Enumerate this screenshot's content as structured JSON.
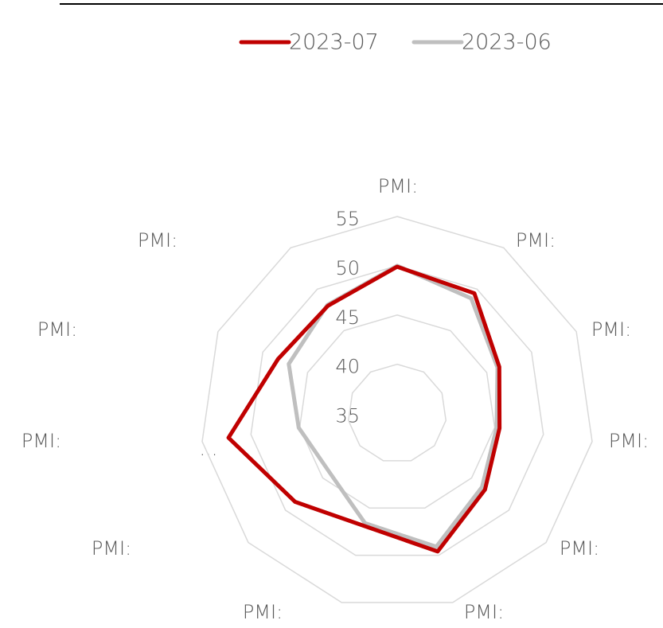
{
  "chart_data": {
    "type": "radar",
    "categories": [
      "PMI:",
      "PMI:",
      "PMI:",
      "PMI:",
      "PMI:",
      "PMI:",
      "PMI:",
      "PMI:",
      "PMI:",
      "PMI:",
      "PMI:"
    ],
    "series": [
      {
        "name": "2023-07",
        "color": "#c00000",
        "values": [
          49.9,
          49.5,
          46.4,
          45.5,
          46.8,
          49.6,
          46.9,
          48.7,
          52.3,
          48.3,
          48.0
        ]
      },
      {
        "name": "2023-06",
        "color": "#bfbfbf",
        "values": [
          50.0,
          48.9,
          46.2,
          45.2,
          46.4,
          49.1,
          46.6,
          44.1,
          45.1,
          47.1,
          48.1
        ]
      }
    ],
    "ylim": [
      35,
      55
    ],
    "yticks": [
      35,
      40,
      45,
      50,
      55
    ],
    "grid": true,
    "legend": "top",
    "annotation": "..."
  }
}
